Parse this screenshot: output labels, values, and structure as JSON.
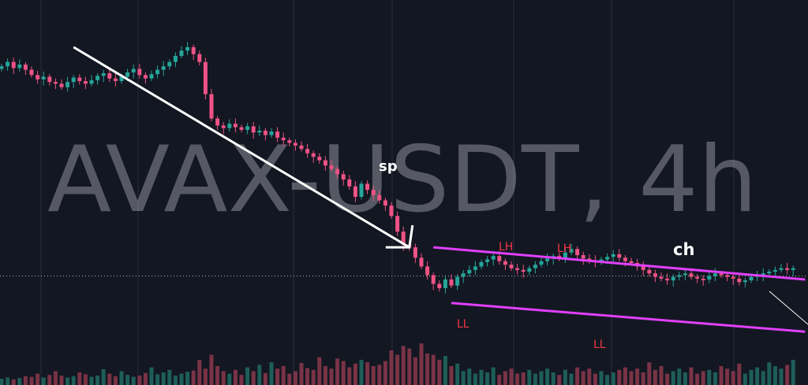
{
  "chart_data": {
    "type": "candlestick",
    "symbol_watermark": "AVAX-USDT, 4h",
    "annotations": {
      "sp": "sp",
      "ch": "ch",
      "lh1": "LH",
      "lh2": "LH",
      "ll1": "LL",
      "ll2": "LL"
    },
    "grid": true,
    "colors": {
      "background": "#131722",
      "grid": "#2a2e39",
      "up": "#26a69a",
      "down": "#ef5385",
      "channel": "#e040fb",
      "trendline": "#ffffff",
      "label_red": "#f23645",
      "vol_up": "#1e5e59",
      "vol_down": "#7a3346"
    },
    "price_series_close": [
      300,
      305,
      298,
      302,
      296,
      290,
      285,
      288,
      282,
      280,
      276,
      282,
      287,
      283,
      280,
      284,
      289,
      292,
      286,
      283,
      288,
      293,
      297,
      290,
      286,
      291,
      296,
      300,
      305,
      312,
      318,
      322,
      314,
      305,
      268,
      240,
      232,
      229,
      234,
      230,
      227,
      231,
      224,
      226,
      221,
      225,
      218,
      215,
      212,
      209,
      205,
      200,
      196,
      192,
      186,
      182,
      176,
      170,
      162,
      150,
      165,
      158,
      152,
      146,
      140,
      128,
      110,
      95,
      92,
      80,
      70,
      60,
      50,
      45,
      55,
      48,
      58,
      62,
      66,
      70,
      75,
      78,
      82,
      76,
      72,
      68,
      66,
      64,
      68,
      72,
      76,
      79,
      82,
      80,
      86,
      90,
      83,
      79,
      77,
      75,
      78,
      81,
      84,
      80,
      76,
      74,
      70,
      66,
      62,
      58,
      56,
      54,
      58,
      60,
      62,
      58,
      56,
      55,
      59,
      62,
      60,
      58,
      56,
      52,
      54,
      58,
      60,
      62,
      64,
      66,
      68,
      66,
      68
    ],
    "volume_series": [
      10,
      12,
      9,
      11,
      14,
      13,
      18,
      12,
      16,
      22,
      15,
      12,
      14,
      20,
      17,
      13,
      15,
      25,
      18,
      14,
      22,
      16,
      13,
      15,
      19,
      28,
      17,
      20,
      24,
      15,
      18,
      21,
      23,
      40,
      26,
      48,
      30,
      22,
      18,
      24,
      16,
      28,
      22,
      32,
      19,
      36,
      26,
      30,
      18,
      22,
      35,
      27,
      24,
      44,
      30,
      26,
      42,
      38,
      28,
      34,
      40,
      36,
      30,
      32,
      38,
      55,
      48,
      62,
      58,
      44,
      66,
      50,
      48,
      40,
      46,
      30,
      34,
      22,
      26,
      18,
      24,
      20,
      28,
      16,
      22,
      26,
      18,
      20,
      24,
      18,
      22,
      26,
      20,
      16,
      24,
      18,
      28,
      22,
      26,
      18,
      22,
      16,
      20,
      24,
      28,
      22,
      26,
      20,
      36,
      24,
      30,
      18,
      22,
      26,
      20,
      28,
      18,
      22,
      24,
      20,
      30,
      26,
      22,
      34,
      18,
      24,
      28,
      22,
      36,
      30,
      26,
      32,
      40
    ],
    "downtrend_line": {
      "from": [
        12,
        322
      ],
      "to": [
        68,
        92
      ]
    },
    "channel_upper": {
      "from": [
        72,
        92
      ],
      "to": [
        134,
        55
      ]
    },
    "channel_lower": {
      "from": [
        75,
        28
      ],
      "to": [
        134,
        -5
      ]
    },
    "current_price_level": 59
  }
}
